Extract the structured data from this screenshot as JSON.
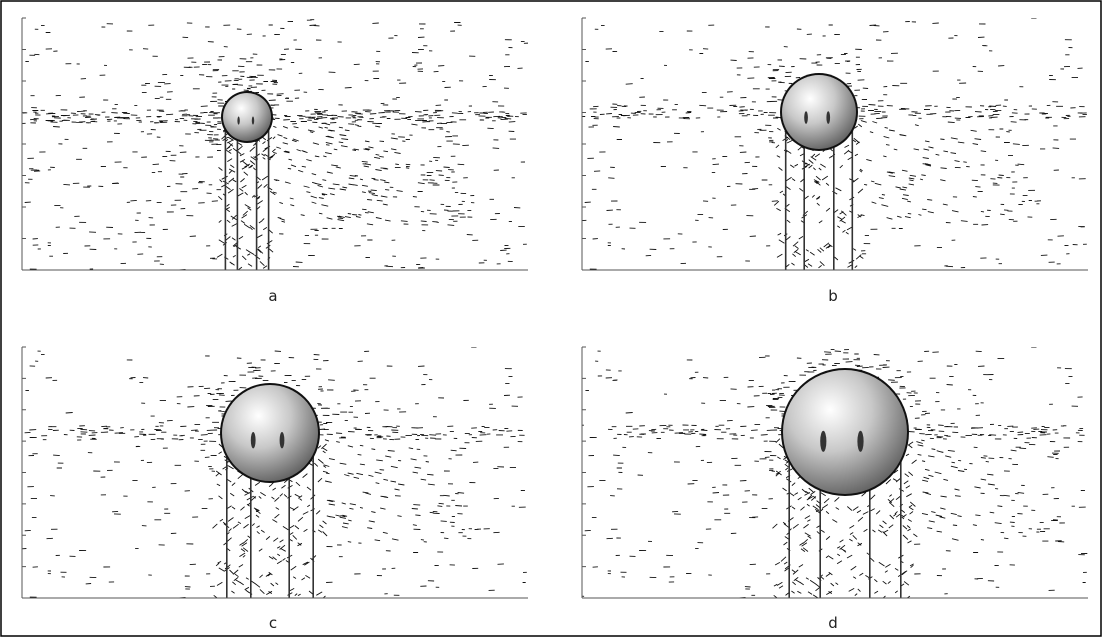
{
  "figure": {
    "panels": [
      {
        "label": "a"
      },
      {
        "label": "b"
      },
      {
        "label": "c"
      },
      {
        "label": "d"
      }
    ]
  }
}
